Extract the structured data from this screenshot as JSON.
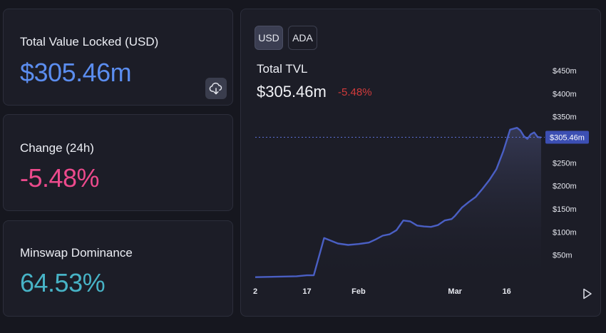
{
  "stats": {
    "tvl": {
      "label": "Total Value Locked (USD)",
      "value": "$305.46m",
      "color": "#5b8def"
    },
    "change": {
      "label": "Change (24h)",
      "value": "-5.48%",
      "color": "#ec4a8c"
    },
    "dominance": {
      "label": "Minswap Dominance",
      "value": "64.53%",
      "color": "#47b3c6"
    },
    "download_icon": "cloud-download-icon"
  },
  "chart_panel": {
    "toggles": [
      {
        "label": "USD",
        "active": true
      },
      {
        "label": "ADA",
        "active": false
      }
    ],
    "title": "Total TVL",
    "value": "$305.46m",
    "change": "-5.48%",
    "change_color": "#d23b3b",
    "line_color": "#4a5fc4",
    "play_icon": "play-icon"
  },
  "chart_data": {
    "type": "area",
    "title": "Total TVL",
    "xlabel": "",
    "ylabel": "",
    "ylim": [
      0,
      475
    ],
    "y_unit": "$m",
    "y_ticks": [
      "$50m",
      "$100m",
      "$150m",
      "$200m",
      "$250m",
      "$350m",
      "$400m",
      "$450m"
    ],
    "y_tick_values": [
      50,
      100,
      150,
      200,
      250,
      350,
      400,
      450
    ],
    "x_ticks": [
      "2",
      "17",
      "Feb",
      "Mar",
      "16"
    ],
    "x_tick_values": [
      0,
      15,
      30,
      58,
      73
    ],
    "current_value_label": "$305.46m",
    "current_value": 305.46,
    "grid": false,
    "x": [
      0,
      6,
      12,
      15,
      17,
      20,
      24,
      27,
      30,
      33,
      35,
      37,
      39,
      41,
      43,
      45,
      47,
      49,
      51,
      53,
      55,
      57,
      58,
      60,
      62,
      64,
      66,
      68,
      70,
      72,
      74,
      76,
      77,
      78,
      79,
      80,
      81,
      82,
      83
    ],
    "values": [
      2,
      3,
      4,
      6,
      6,
      87,
      75,
      72,
      74,
      77,
      84,
      92,
      95,
      104,
      125,
      123,
      114,
      112,
      111,
      115,
      125,
      128,
      135,
      153,
      165,
      176,
      194,
      213,
      236,
      275,
      322,
      326,
      320,
      308,
      302,
      312,
      316,
      306,
      305
    ]
  }
}
